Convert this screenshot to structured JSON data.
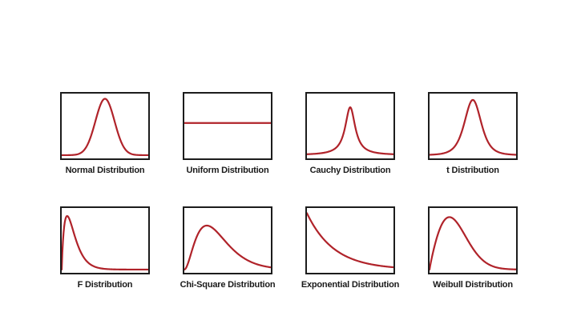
{
  "colors": {
    "curve": "#b0232a",
    "border": "#1c1c1c",
    "background": "#ffffff",
    "label": "#1a1a1a"
  },
  "chart_data": [
    {
      "type": "line",
      "title": "Normal Distribution",
      "kind": "normal",
      "amp": 1.0,
      "params": {
        "mu": 0.5,
        "sigma": 0.11
      }
    },
    {
      "type": "line",
      "title": "Uniform Distribution",
      "kind": "uniform",
      "amp": 0.57,
      "params": {
        "level": 0.57
      }
    },
    {
      "type": "line",
      "title": "Cauchy Distribution",
      "kind": "cauchy",
      "amp": 0.85,
      "params": {
        "x0": 0.5,
        "gamma": 0.07
      }
    },
    {
      "type": "line",
      "title": "t Distribution",
      "kind": "student_t",
      "amp": 0.98,
      "params": {
        "mu": 0.5,
        "scale": 0.1,
        "nu": 4
      }
    },
    {
      "type": "line",
      "title": "F Distribution",
      "kind": "gamma",
      "amp": 0.95,
      "params": {
        "k": 1.9,
        "theta": 0.07
      }
    },
    {
      "type": "line",
      "title": "Chi-Square Distribution",
      "kind": "gamma",
      "amp": 0.78,
      "params": {
        "k": 3.0,
        "theta": 0.13
      }
    },
    {
      "type": "line",
      "title": "Exponential Distribution",
      "kind": "exponential",
      "amp": 1.0,
      "params": {
        "rate": 3.2
      }
    },
    {
      "type": "line",
      "title": "Weibull Distribution",
      "kind": "weibull",
      "amp": 0.93,
      "params": {
        "k": 1.9,
        "lambda": 0.34
      }
    }
  ]
}
